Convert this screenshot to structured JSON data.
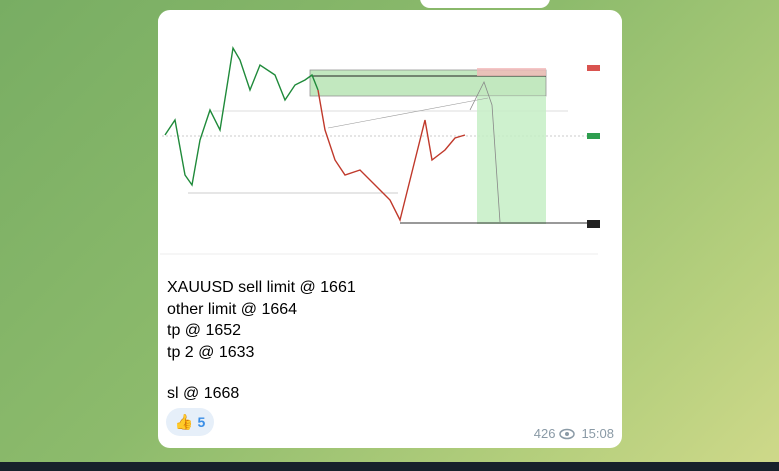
{
  "message": {
    "lines": [
      "XAUUSD sell limit @ 1661",
      "other limit @ 1664",
      "tp @ 1652",
      "tp 2 @ 1633",
      "sl @ 1668"
    ],
    "reaction": {
      "emoji": "👍",
      "count": 5
    },
    "views": 426,
    "time": "15:08"
  }
}
